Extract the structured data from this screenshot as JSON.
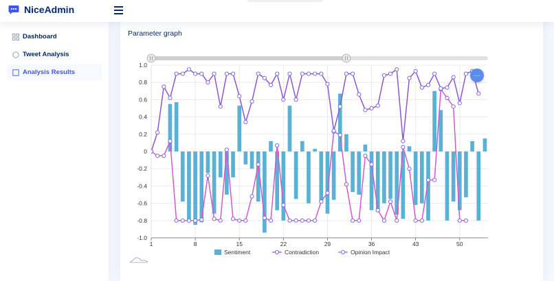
{
  "app": {
    "name": "NiceAdmin",
    "logo_icon": "chat-logo-icon",
    "accent": "#4154f1"
  },
  "sidebar": {
    "items": [
      {
        "label": "Dashboard",
        "icon": "grid-icon",
        "active": false
      },
      {
        "label": "Tweet Analysis",
        "icon": "circle-icon",
        "active": false
      },
      {
        "label": "Analysis Results",
        "icon": "square-icon",
        "active": true
      }
    ]
  },
  "card": {
    "title": "Parameter graph",
    "zoom_label": "···"
  },
  "chart_data": {
    "type": "bar-line",
    "title": "Parameter graph",
    "x_ticks": [
      1,
      8,
      15,
      22,
      29,
      36,
      43,
      50
    ],
    "y_ticks": [
      "1.0",
      "0.8",
      "0.6",
      "0.4",
      "0.2",
      "0",
      "-0.2",
      "-0.4",
      "-0.6",
      "-0.8",
      "-1.0"
    ],
    "ylim": [
      -1.0,
      1.0
    ],
    "xlim": [
      1,
      54.5
    ],
    "legend_position": "bottom-center",
    "dataZoom": {
      "start_index": 1,
      "end_index": 32
    },
    "series": [
      {
        "name": "Sentiment",
        "type": "bar",
        "color": "#5ab1d6",
        "values": [
          0,
          0,
          0,
          0.55,
          0.57,
          -0.58,
          -0.8,
          -0.85,
          -0.82,
          -0.25,
          -0.72,
          -0.3,
          -0.5,
          -0.3,
          0.53,
          -0.15,
          -0.2,
          -0.58,
          -0.94,
          0.12,
          -0.68,
          -0.8,
          0.53,
          -0.55,
          0.12,
          -0.6,
          0.03,
          -0.58,
          -0.72,
          -0.56,
          0.67,
          0.2,
          -0.47,
          -0.5,
          0.08,
          -0.68,
          -0.7,
          -0.6,
          -0.55,
          -0.73,
          -0.78,
          0.06,
          -0.62,
          -0.6,
          -0.8,
          0.7,
          0.48,
          -0.8,
          -0.58,
          -0.68,
          -0.53,
          0.12,
          -0.8,
          0.15,
          0
        ]
      },
      {
        "name": "Contradiction",
        "type": "line",
        "color": "#8e55d2",
        "marker": "circle",
        "values": [
          0,
          0.22,
          0.75,
          0.62,
          0.9,
          0.9,
          0.95,
          0.9,
          0.9,
          0.8,
          0.9,
          0.52,
          0.9,
          0.9,
          0.64,
          0.34,
          0.58,
          0.9,
          0.85,
          0.77,
          0.9,
          0.6,
          0.9,
          0.6,
          0.9,
          0.9,
          0.9,
          0.9,
          0.78,
          0.24,
          0.52,
          0.9,
          0.9,
          0.66,
          0.48,
          0.5,
          0.53,
          0.88,
          0.9,
          0.95,
          0.12,
          0.85,
          0.93,
          0.74,
          0.77,
          0.9,
          0.73,
          0.74,
          0.86,
          0.56,
          0.9,
          0.93,
          0.67
        ]
      },
      {
        "name": "Opinion Impact",
        "type": "line",
        "color": "#d557cf",
        "marker": "circle",
        "values": [
          0,
          -0.05,
          -0.05,
          0.12,
          -0.8,
          -0.8,
          -0.8,
          -0.8,
          -0.79,
          -0.28,
          -0.78,
          -0.8,
          0.02,
          -0.78,
          -0.8,
          -0.8,
          -0.52,
          -0.15,
          -0.77,
          -0.8,
          0.07,
          -0.62,
          -0.8,
          -0.8,
          -0.8,
          -0.8,
          -0.8,
          -0.58,
          -0.48,
          0.23,
          0.19,
          -0.38,
          -0.8,
          -0.8,
          -0.05,
          -0.15,
          -0.68,
          -0.8,
          -0.58,
          -0.8,
          0.05,
          -0.2,
          -0.8,
          -0.8,
          -0.33,
          -0.33,
          0.72,
          0.62,
          0.52,
          -0.8,
          -0.8
        ]
      }
    ]
  }
}
